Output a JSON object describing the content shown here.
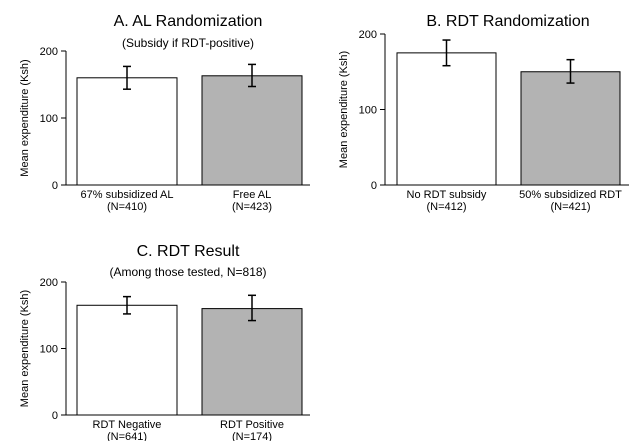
{
  "chart_data": [
    {
      "type": "bar",
      "title": "A. AL Randomization",
      "subtitle": "(Subsidy if RDT-positive)",
      "ylabel": "Mean expenditure (Ksh)",
      "ylim": [
        0,
        200
      ],
      "yticks": [
        0,
        100,
        200
      ],
      "categories": [
        "67% subsidized AL",
        "Free AL"
      ],
      "sample_sizes": [
        "(N=410)",
        "(N=423)"
      ],
      "values": [
        160,
        163
      ],
      "error_low": [
        143,
        147
      ],
      "error_high": [
        177,
        180
      ],
      "bar_colors": [
        "#ffffff",
        "#b3b3b3"
      ],
      "grid": false
    },
    {
      "type": "bar",
      "title": "B. RDT Randomization",
      "subtitle": "",
      "ylabel": "Mean expenditure (Ksh)",
      "ylim": [
        0,
        200
      ],
      "yticks": [
        0,
        100,
        200
      ],
      "categories": [
        "No RDT subsidy",
        "50% subsidized RDT"
      ],
      "sample_sizes": [
        "(N=412)",
        "(N=421)"
      ],
      "values": [
        175,
        150
      ],
      "error_low": [
        158,
        135
      ],
      "error_high": [
        192,
        166
      ],
      "bar_colors": [
        "#ffffff",
        "#b3b3b3"
      ],
      "grid": false
    },
    {
      "type": "bar",
      "title": "C. RDT Result",
      "subtitle": "(Among those tested, N=818)",
      "ylabel": "Mean expenditure (Ksh)",
      "ylim": [
        0,
        200
      ],
      "yticks": [
        0,
        100,
        200
      ],
      "categories": [
        "RDT Negative",
        "RDT Positive"
      ],
      "sample_sizes": [
        "(N=641)",
        "(N=174)"
      ],
      "values": [
        165,
        160
      ],
      "error_low": [
        152,
        142
      ],
      "error_high": [
        178,
        180
      ],
      "bar_colors": [
        "#ffffff",
        "#b3b3b3"
      ],
      "grid": false
    }
  ]
}
